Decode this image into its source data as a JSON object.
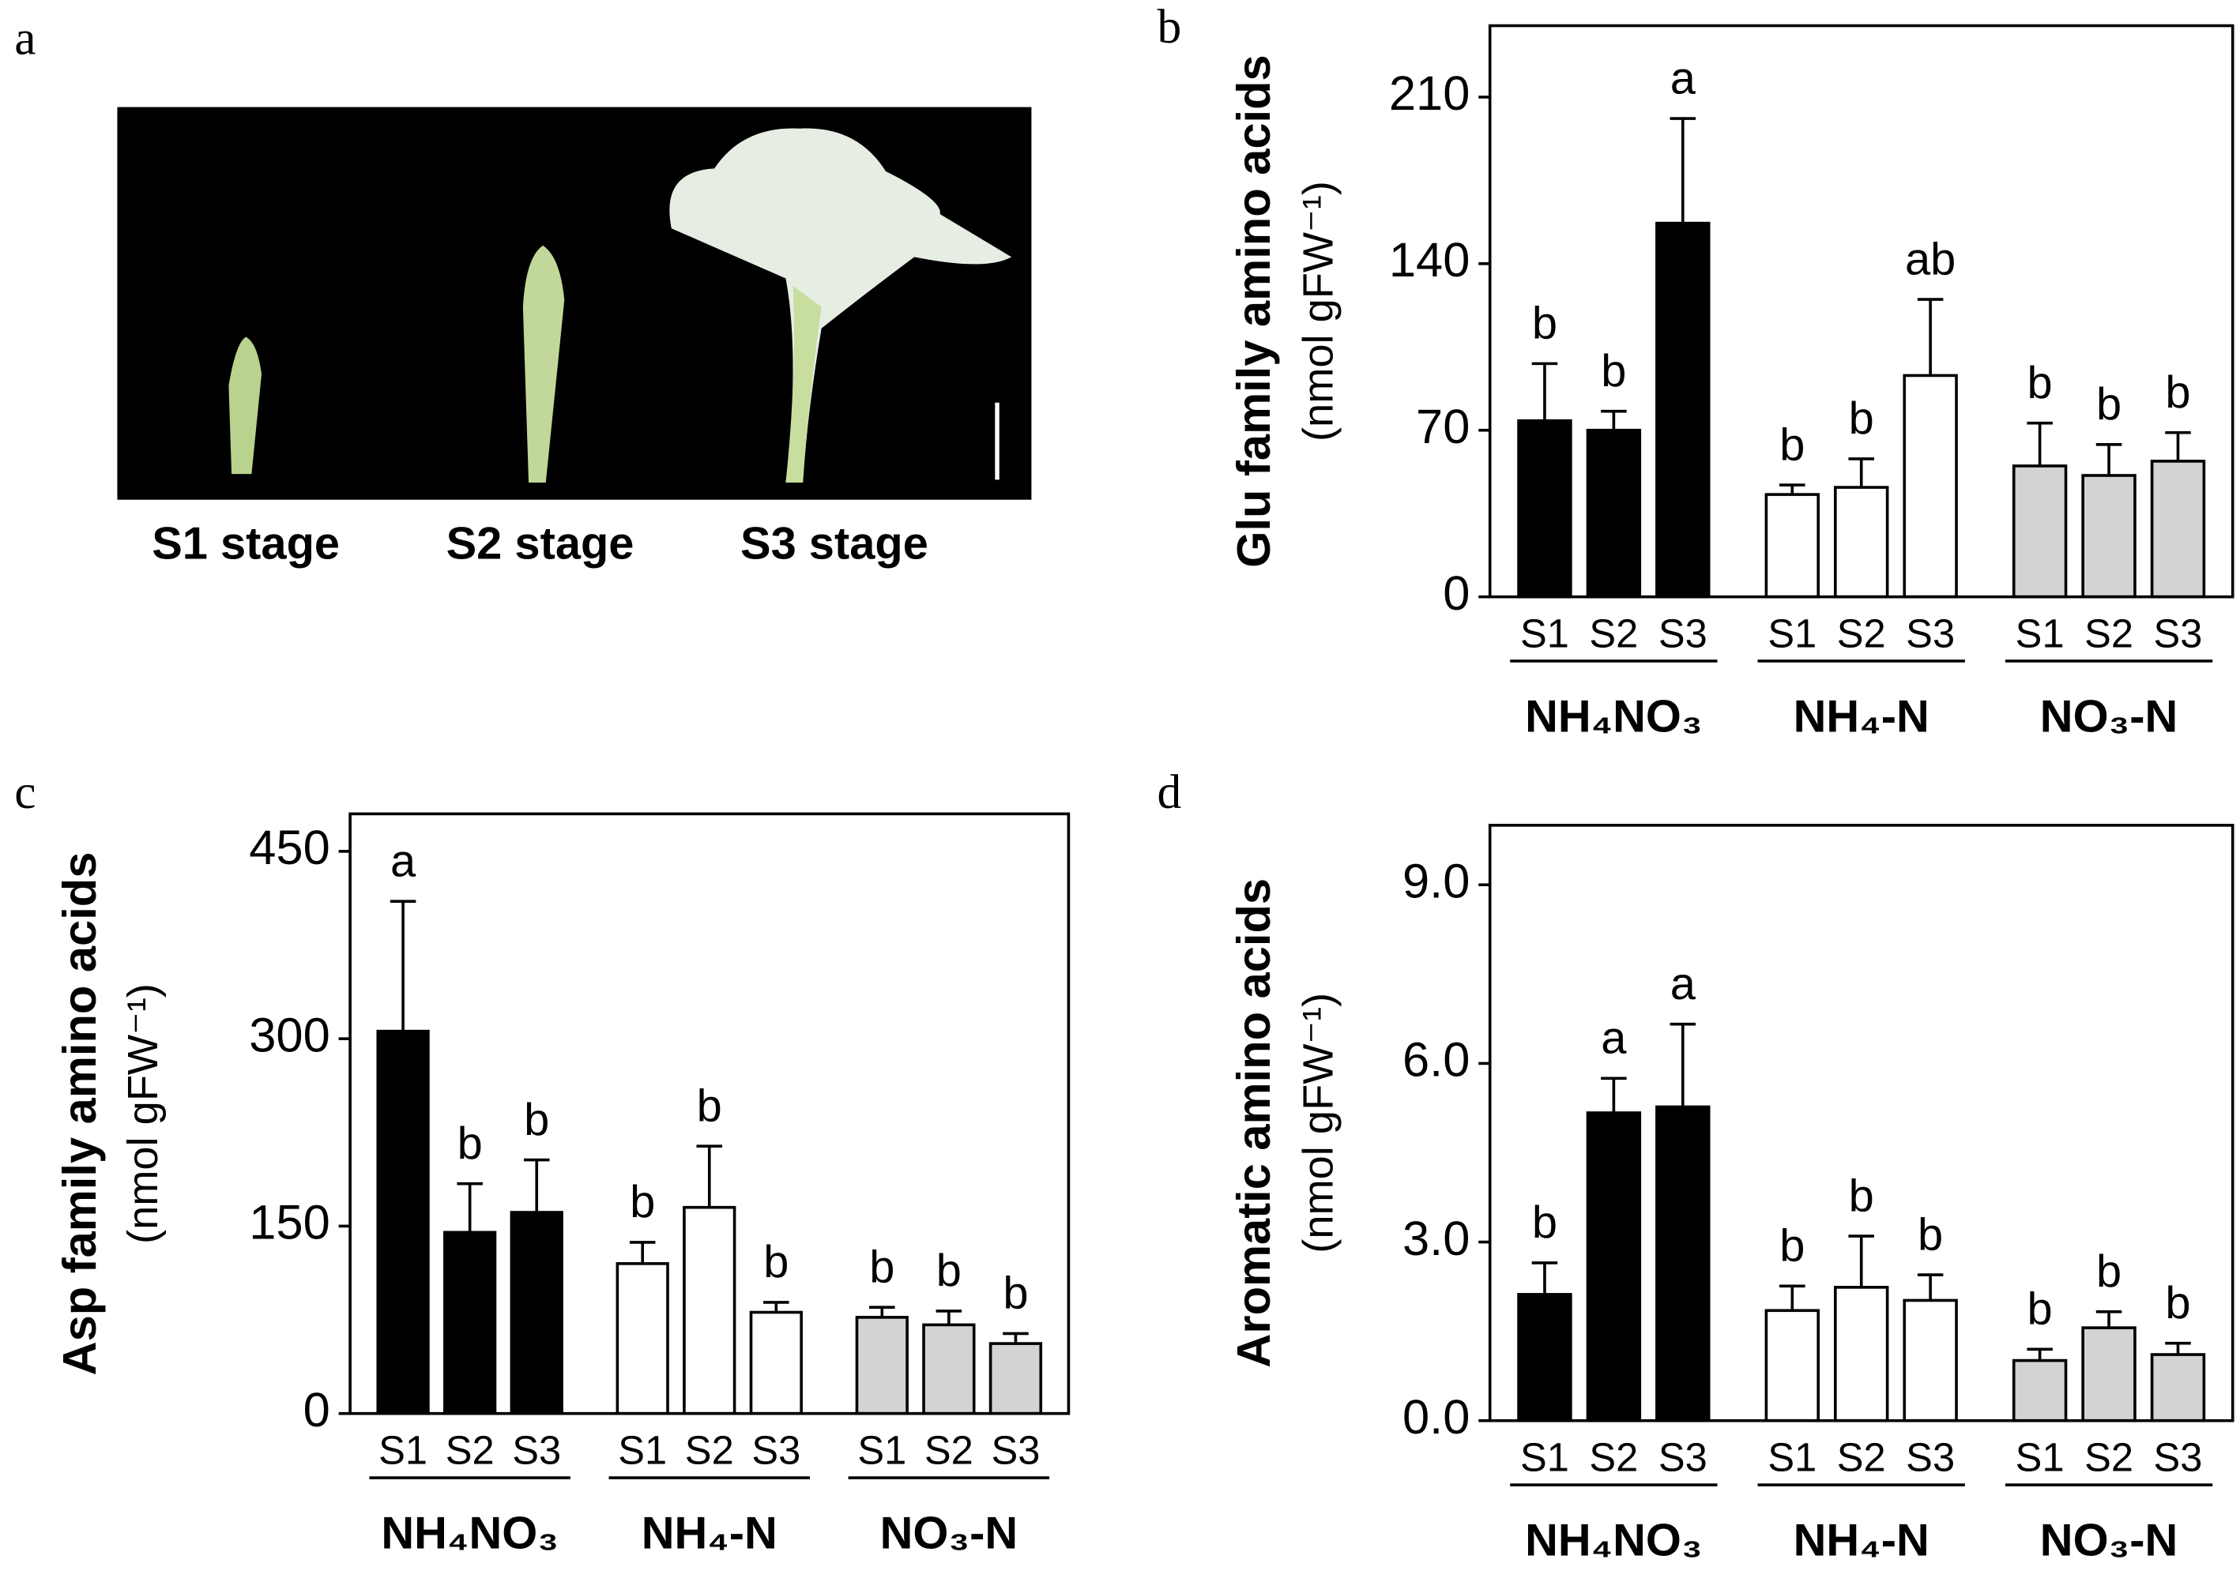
{
  "panel_a": {
    "label": "a",
    "stages": [
      "S1 stage",
      "S2 stage",
      "S3 stage"
    ]
  },
  "chart_data": [
    {
      "type": "bar",
      "panel": "b",
      "ylabel": "Glu family amino acids",
      "yunit": "(nmol gFW⁻¹)",
      "categories": [
        "S1",
        "S2",
        "S3"
      ],
      "series": [
        {
          "name": "NH₄NO₃",
          "color": "#000000",
          "values": [
            74,
            70,
            157
          ],
          "errors": [
            24,
            8,
            44
          ],
          "letters": [
            "b",
            "b",
            "a"
          ]
        },
        {
          "name": "NH₄-N",
          "color": "#ffffff",
          "values": [
            43,
            46,
            93
          ],
          "errors": [
            4,
            12,
            32
          ],
          "letters": [
            "b",
            "b",
            "ab"
          ]
        },
        {
          "name": "NO₃-N",
          "color": "#d3d3d3",
          "values": [
            55,
            51,
            57
          ],
          "errors": [
            18,
            13,
            12
          ],
          "letters": [
            "b",
            "b",
            "b"
          ]
        }
      ],
      "ylim": [
        0,
        240
      ],
      "yticks": [
        0,
        70,
        140,
        210
      ]
    },
    {
      "type": "bar",
      "panel": "c",
      "ylabel": "Asp family amino acids",
      "yunit": "(nmol gFW⁻¹)",
      "categories": [
        "S1",
        "S2",
        "S3"
      ],
      "series": [
        {
          "name": "NH₄NO₃",
          "color": "#000000",
          "values": [
            306,
            145,
            161
          ],
          "errors": [
            104,
            39,
            42
          ],
          "letters": [
            "a",
            "b",
            "b"
          ]
        },
        {
          "name": "NH₄-N",
          "color": "#ffffff",
          "values": [
            120,
            165,
            81
          ],
          "errors": [
            17,
            49,
            8
          ],
          "letters": [
            "b",
            "b",
            "b"
          ]
        },
        {
          "name": "NO₃-N",
          "color": "#d3d3d3",
          "values": [
            77,
            71,
            56
          ],
          "errors": [
            8,
            11,
            8
          ],
          "letters": [
            "b",
            "b",
            "b"
          ]
        }
      ],
      "ylim": [
        0,
        480
      ],
      "yticks": [
        0,
        150,
        300,
        450
      ]
    },
    {
      "type": "bar",
      "panel": "d",
      "ylabel": "Aromatic amino acids",
      "yunit": "(nmol gFW⁻¹)",
      "categories": [
        "S1",
        "S2",
        "S3"
      ],
      "series": [
        {
          "name": "NH₄NO₃",
          "color": "#000000",
          "values": [
            2.12,
            5.17,
            5.27
          ],
          "errors": [
            0.53,
            0.58,
            1.39
          ],
          "letters": [
            "b",
            "a",
            "a"
          ]
        },
        {
          "name": "NH₄-N",
          "color": "#ffffff",
          "values": [
            1.85,
            2.24,
            2.02
          ],
          "errors": [
            0.41,
            0.86,
            0.43
          ],
          "letters": [
            "b",
            "b",
            "b"
          ]
        },
        {
          "name": "NO₃-N",
          "color": "#d3d3d3",
          "values": [
            1.01,
            1.56,
            1.11
          ],
          "errors": [
            0.19,
            0.27,
            0.19
          ],
          "letters": [
            "b",
            "b",
            "b"
          ]
        }
      ],
      "ylim": [
        0,
        10
      ],
      "yticks": [
        {
          "value": 0,
          "label": "0.0"
        },
        {
          "value": 3,
          "label": "3.0"
        },
        {
          "value": 6,
          "label": "6.0"
        },
        {
          "value": 9,
          "label": "9.0"
        }
      ]
    }
  ]
}
